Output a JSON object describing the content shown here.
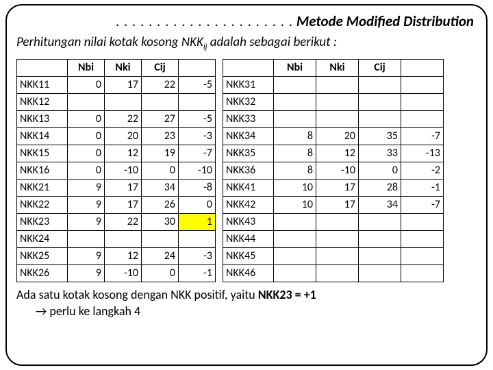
{
  "title": {
    "dots": ". . . . . . . . . . . . . . . . . . . . . .",
    "text": "Metode Modified Distribution"
  },
  "subtitle": {
    "prefix": "Perhitungan nilai kotak kosong NKK",
    "sub": "ij",
    "suffix": " adalah sebagai berikut :"
  },
  "headers": [
    "Nbi",
    "Nki",
    "Cij"
  ],
  "table1": {
    "rows": [
      {
        "label": "NKK11",
        "v": [
          "0",
          "17",
          "22",
          "-5"
        ]
      },
      {
        "label": "NKK12",
        "v": [
          "",
          "",
          "",
          ""
        ]
      },
      {
        "label": "NKK13",
        "v": [
          "0",
          "22",
          "27",
          "-5"
        ]
      },
      {
        "label": "NKK14",
        "v": [
          "0",
          "20",
          "23",
          "-3"
        ]
      },
      {
        "label": "NKK15",
        "v": [
          "0",
          "12",
          "19",
          "-7"
        ]
      },
      {
        "label": "NKK16",
        "v": [
          "0",
          "-10",
          "0",
          "-10"
        ]
      },
      {
        "label": "NKK21",
        "v": [
          "9",
          "17",
          "34",
          "-8"
        ]
      },
      {
        "label": "NKK22",
        "v": [
          "9",
          "17",
          "26",
          "0"
        ]
      },
      {
        "label": "NKK23",
        "v": [
          "9",
          "22",
          "30",
          "1"
        ],
        "hl": 3
      },
      {
        "label": "NKK24",
        "v": [
          "",
          "",
          "",
          ""
        ]
      },
      {
        "label": "NKK25",
        "v": [
          "9",
          "12",
          "24",
          "-3"
        ]
      },
      {
        "label": "NKK26",
        "v": [
          "9",
          "-10",
          "0",
          "-1"
        ]
      }
    ]
  },
  "table2": {
    "rows": [
      {
        "label": "NKK31",
        "v": [
          "",
          "",
          "",
          ""
        ]
      },
      {
        "label": "NKK32",
        "v": [
          "",
          "",
          "",
          ""
        ]
      },
      {
        "label": "NKK33",
        "v": [
          "",
          "",
          "",
          ""
        ]
      },
      {
        "label": "NKK34",
        "v": [
          "8",
          "20",
          "35",
          "-7"
        ]
      },
      {
        "label": "NKK35",
        "v": [
          "8",
          "12",
          "33",
          "-13"
        ]
      },
      {
        "label": "NKK36",
        "v": [
          "8",
          "-10",
          "0",
          "-2"
        ]
      },
      {
        "label": "NKK41",
        "v": [
          "10",
          "17",
          "28",
          "-1"
        ]
      },
      {
        "label": "NKK42",
        "v": [
          "10",
          "17",
          "34",
          "-7"
        ]
      },
      {
        "label": "NKK43",
        "v": [
          "",
          "",
          "",
          ""
        ]
      },
      {
        "label": "NKK44",
        "v": [
          "",
          "",
          "",
          ""
        ]
      },
      {
        "label": "NKK45",
        "v": [
          "",
          "",
          "",
          ""
        ]
      },
      {
        "label": "NKK46",
        "v": [
          "",
          "",
          "",
          ""
        ]
      }
    ]
  },
  "footer": {
    "line1a": "Ada satu kotak kosong dengan NKK positif, yaitu ",
    "line1b": "NKK23 = +1",
    "line2": "→ perlu ke langkah 4"
  },
  "colors": {
    "highlight": "#ffff00",
    "border": "#000000",
    "bg": "#ffffff"
  }
}
